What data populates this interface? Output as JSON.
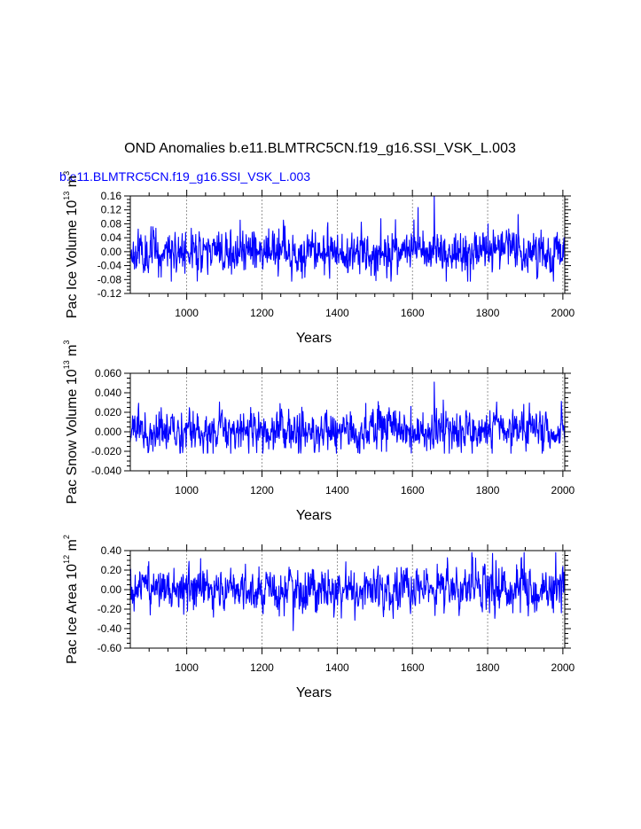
{
  "title": "OND Anomalies b.e11.BLMTRC5CN.f19_g16.SSI_VSK_L.003",
  "subtitle": "b.e11.BLMTRC5CN.f19_g16.SSI_VSK_L.003",
  "colors": {
    "series": "#0000ff",
    "axes": "#000000",
    "grid": "#555555",
    "subtitle": "#0000ff"
  },
  "chart_data": [
    {
      "type": "line",
      "ylabel_prefix": "Pac Ice Volume 10",
      "ylabel_exp": "13",
      "ylabel_unit": " m",
      "ylabel_unit_exp": "3",
      "xlabel": "Years",
      "xlim": [
        850,
        2005
      ],
      "ylim": [
        -0.12,
        0.16
      ],
      "xticks": [
        "1000",
        "1200",
        "1400",
        "1600",
        "1800",
        "2000"
      ],
      "xtick_values": [
        1000,
        1200,
        1400,
        1600,
        1800,
        2000
      ],
      "yticks": [
        "0.16",
        "0.12",
        "0.08",
        "0.04",
        "0.00",
        "-0.04",
        "-0.08",
        "-0.12"
      ],
      "ytick_values": [
        0.16,
        0.12,
        0.08,
        0.04,
        0.0,
        -0.04,
        -0.08,
        -0.12
      ],
      "series": [
        {
          "name": "Pac Ice Volume",
          "x_start": 850,
          "x_end": 2005,
          "amplitude": 0.028,
          "min": -0.085,
          "max": 0.16,
          "peak_x": 1658,
          "peak_y": 0.16,
          "seed": 11
        }
      ]
    },
    {
      "type": "line",
      "ylabel_prefix": "Pac Snow Volume 10",
      "ylabel_exp": "13",
      "ylabel_unit": " m",
      "ylabel_unit_exp": "3",
      "xlabel": "Years",
      "xlim": [
        850,
        2005
      ],
      "ylim": [
        -0.04,
        0.06
      ],
      "xticks": [
        "1000",
        "1200",
        "1400",
        "1600",
        "1800",
        "2000"
      ],
      "xtick_values": [
        1000,
        1200,
        1400,
        1600,
        1800,
        2000
      ],
      "yticks": [
        "0.060",
        "0.040",
        "0.020",
        "0.000",
        "-0.020",
        "-0.040"
      ],
      "ytick_values": [
        0.06,
        0.04,
        0.02,
        0.0,
        -0.02,
        -0.04
      ],
      "series": [
        {
          "name": "Pac Snow Volume",
          "x_start": 850,
          "x_end": 2005,
          "amplitude": 0.0095,
          "min": -0.022,
          "max": 0.051,
          "peak_x": 1658,
          "peak_y": 0.051,
          "seed": 23
        }
      ]
    },
    {
      "type": "line",
      "ylabel_prefix": "Pac Ice Area 10",
      "ylabel_exp": "12",
      "ylabel_unit": " m",
      "ylabel_unit_exp": "2",
      "xlabel": "Years",
      "xlim": [
        850,
        2005
      ],
      "ylim": [
        -0.6,
        0.4
      ],
      "xticks": [
        "1000",
        "1200",
        "1400",
        "1600",
        "1800",
        "2000"
      ],
      "xtick_values": [
        1000,
        1200,
        1400,
        1600,
        1800,
        2000
      ],
      "yticks": [
        "0.40",
        "0.20",
        "0.00",
        "-0.20",
        "-0.40",
        "-0.60"
      ],
      "ytick_values": [
        0.4,
        0.2,
        0.0,
        -0.2,
        -0.4,
        -0.6
      ],
      "series": [
        {
          "name": "Pac Ice Area",
          "x_start": 850,
          "x_end": 2005,
          "amplitude": 0.1,
          "min": -0.42,
          "max": 0.38,
          "peak_x": 1283,
          "peak_y": -0.42,
          "seed": 37
        }
      ]
    }
  ]
}
